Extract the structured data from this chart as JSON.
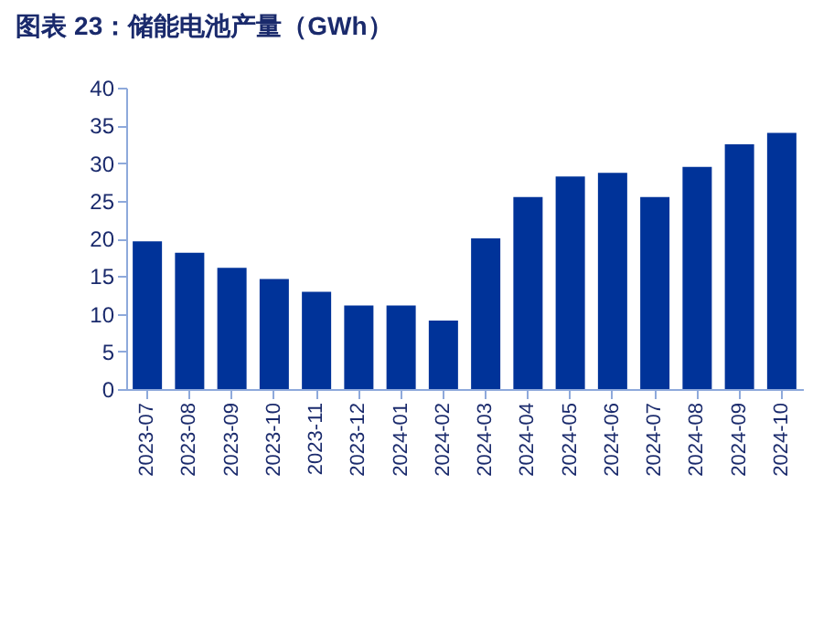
{
  "chart_data": {
    "type": "bar",
    "title": "图表 23：储能电池产量（GWh）",
    "categories": [
      "2023-07",
      "2023-08",
      "2023-09",
      "2023-10",
      "2023-11",
      "2023-12",
      "2024-01",
      "2024-02",
      "2024-03",
      "2024-04",
      "2024-05",
      "2024-06",
      "2024-07",
      "2024-08",
      "2024-09",
      "2024-10"
    ],
    "values": [
      19.6,
      18.1,
      16.1,
      14.6,
      12.9,
      11.1,
      11.1,
      9.1,
      20.0,
      25.5,
      28.2,
      28.7,
      25.5,
      29.5,
      32.5,
      34.0
    ],
    "color": "#003399",
    "ylim": [
      0,
      40
    ],
    "yticks": [
      0,
      5,
      10,
      15,
      20,
      25,
      30,
      35,
      40
    ],
    "grid": false
  }
}
